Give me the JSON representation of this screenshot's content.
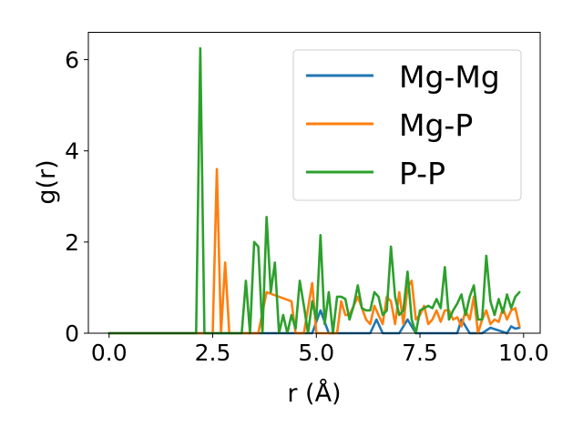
{
  "chart_data": {
    "type": "line",
    "title": "",
    "xlabel": "r (Å)",
    "ylabel": "g(r)",
    "xlim": [
      -0.5,
      10.4
    ],
    "ylim": [
      0,
      6.6
    ],
    "xticks": [
      "0.0",
      "2.5",
      "5.0",
      "7.5",
      "10.0"
    ],
    "yticks": [
      "0",
      "2",
      "4",
      "6"
    ],
    "grid": false,
    "legend_position": "top-right",
    "series": [
      {
        "name": "Mg-Mg",
        "color": "#1f77b4",
        "x": [
          0.0,
          4.9,
          5.1,
          5.3,
          6.3,
          6.45,
          6.6,
          7.0,
          7.2,
          7.4,
          8.4,
          8.5,
          8.7,
          9.0,
          9.2,
          9.6,
          9.7,
          9.8,
          9.9
        ],
        "y": [
          0.0,
          0.0,
          0.5,
          0.0,
          0.0,
          0.3,
          0.0,
          0.0,
          0.3,
          0.0,
          0.0,
          0.3,
          0.0,
          0.0,
          0.12,
          0.0,
          0.15,
          0.1,
          0.12
        ]
      },
      {
        "name": "Mg-P",
        "color": "#ff7f0e",
        "x": [
          0.0,
          2.5,
          2.6,
          2.7,
          2.8,
          2.9,
          3.5,
          3.6,
          3.8,
          4.4,
          4.5,
          4.7,
          4.9,
          5.0,
          5.5,
          5.6,
          5.7,
          5.8,
          5.9,
          6.0,
          6.2,
          6.3,
          6.4,
          6.5,
          6.6,
          6.7,
          6.8,
          6.9,
          7.0,
          7.1,
          7.2,
          7.3,
          7.4,
          7.5,
          7.6,
          7.7,
          7.8,
          7.9,
          8.0,
          8.1,
          8.2,
          8.3,
          8.4,
          8.5,
          8.6,
          8.7,
          8.8,
          8.9,
          9.0,
          9.1,
          9.2,
          9.3,
          9.4,
          9.5,
          9.6,
          9.7,
          9.8,
          9.9
        ],
        "y": [
          0.0,
          0.0,
          3.6,
          0.0,
          1.55,
          0.0,
          0.0,
          0.0,
          0.9,
          0.7,
          0.0,
          0.0,
          1.1,
          0.0,
          0.0,
          0.7,
          0.4,
          0.4,
          0.6,
          0.8,
          0.3,
          0.2,
          0.6,
          0.4,
          0.2,
          0.8,
          0.7,
          0.2,
          0.9,
          0.2,
          1.0,
          1.15,
          0.3,
          0.4,
          0.6,
          0.2,
          0.3,
          0.5,
          0.25,
          0.5,
          0.5,
          0.3,
          0.35,
          0.15,
          0.5,
          0.3,
          0.8,
          0.0,
          0.3,
          0.5,
          0.2,
          0.3,
          0.25,
          0.55,
          0.3,
          0.5,
          0.55,
          0.15
        ]
      },
      {
        "name": "P-P",
        "color": "#2ca02c",
        "x": [
          0.0,
          2.1,
          2.2,
          2.3,
          3.2,
          3.3,
          3.4,
          3.5,
          3.6,
          3.7,
          3.8,
          3.9,
          4.0,
          4.1,
          4.2,
          4.3,
          4.4,
          4.5,
          4.6,
          4.7,
          4.8,
          4.9,
          5.0,
          5.1,
          5.2,
          5.3,
          5.4,
          5.5,
          5.6,
          5.7,
          5.8,
          5.9,
          6.0,
          6.1,
          6.2,
          6.3,
          6.4,
          6.5,
          6.6,
          6.7,
          6.8,
          6.9,
          7.0,
          7.1,
          7.2,
          7.3,
          7.4,
          7.5,
          7.6,
          7.7,
          7.8,
          7.9,
          8.0,
          8.1,
          8.2,
          8.3,
          8.4,
          8.5,
          8.6,
          8.7,
          8.8,
          8.9,
          9.0,
          9.1,
          9.2,
          9.3,
          9.4,
          9.5,
          9.6,
          9.7,
          9.8,
          9.9
        ],
        "y": [
          0.0,
          0.0,
          6.25,
          0.0,
          0.0,
          1.15,
          0.0,
          2.0,
          1.9,
          0.0,
          2.55,
          0.9,
          1.55,
          0.0,
          0.4,
          0.0,
          0.4,
          0.1,
          1.15,
          0.6,
          0.0,
          0.7,
          0.3,
          2.15,
          0.2,
          0.9,
          0.0,
          0.8,
          0.8,
          0.75,
          0.3,
          0.6,
          1.05,
          0.55,
          0.5,
          0.5,
          0.9,
          0.8,
          0.4,
          0.5,
          1.9,
          0.8,
          0.4,
          0.5,
          1.35,
          0.3,
          0.0,
          0.5,
          0.55,
          0.6,
          0.55,
          0.75,
          0.55,
          1.45,
          0.3,
          0.5,
          0.65,
          0.85,
          0.4,
          0.8,
          1.05,
          0.3,
          0.3,
          1.7,
          0.7,
          0.4,
          0.75,
          0.45,
          0.85,
          0.55,
          0.8,
          0.9
        ]
      }
    ]
  }
}
